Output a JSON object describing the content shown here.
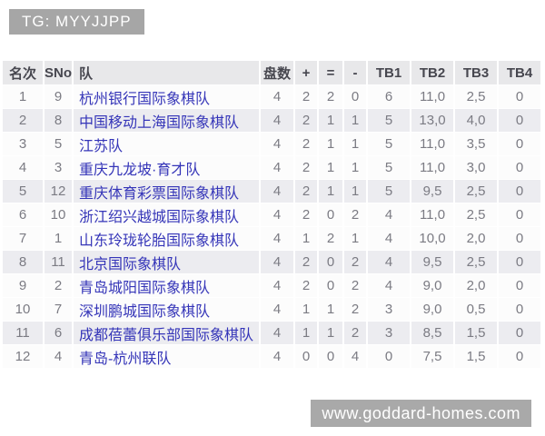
{
  "overlay_tag": {
    "text": "TG: MYYJJPP"
  },
  "watermark": {
    "text": "www.goddard-homes.com"
  },
  "standings": {
    "headers": {
      "rank": "名次",
      "sno": "SNo",
      "team": "队",
      "games": "盘数",
      "wins": "+",
      "draws": "=",
      "losses": "-",
      "tb1": "TB1",
      "tb2": "TB2",
      "tb3": "TB3",
      "tb4": "TB4"
    },
    "rows": [
      {
        "rank": "1",
        "sno": "9",
        "team": "杭州银行国际象棋队",
        "games": "4",
        "wins": "2",
        "draws": "2",
        "losses": "0",
        "tb1": "6",
        "tb2": "11,0",
        "tb3": "2,5",
        "tb4": "0"
      },
      {
        "rank": "2",
        "sno": "8",
        "team": "中国移动上海国际象棋队",
        "games": "4",
        "wins": "2",
        "draws": "1",
        "losses": "1",
        "tb1": "5",
        "tb2": "13,0",
        "tb3": "4,0",
        "tb4": "0"
      },
      {
        "rank": "3",
        "sno": "5",
        "team": "江苏队",
        "games": "4",
        "wins": "2",
        "draws": "1",
        "losses": "1",
        "tb1": "5",
        "tb2": "11,0",
        "tb3": "3,5",
        "tb4": "0"
      },
      {
        "rank": "4",
        "sno": "3",
        "team": "重庆九龙坡·育才队",
        "games": "4",
        "wins": "2",
        "draws": "1",
        "losses": "1",
        "tb1": "5",
        "tb2": "11,0",
        "tb3": "3,0",
        "tb4": "0"
      },
      {
        "rank": "5",
        "sno": "12",
        "team": "重庆体育彩票国际象棋队",
        "games": "4",
        "wins": "2",
        "draws": "1",
        "losses": "1",
        "tb1": "5",
        "tb2": "9,5",
        "tb3": "2,5",
        "tb4": "0"
      },
      {
        "rank": "6",
        "sno": "10",
        "team": "浙江绍兴越城国际象棋队",
        "games": "4",
        "wins": "2",
        "draws": "0",
        "losses": "2",
        "tb1": "4",
        "tb2": "11,0",
        "tb3": "2,5",
        "tb4": "0"
      },
      {
        "rank": "7",
        "sno": "1",
        "team": "山东玲珑轮胎国际象棋队",
        "games": "4",
        "wins": "1",
        "draws": "2",
        "losses": "1",
        "tb1": "4",
        "tb2": "10,0",
        "tb3": "2,0",
        "tb4": "0"
      },
      {
        "rank": "8",
        "sno": "11",
        "team": "北京国际象棋队",
        "games": "4",
        "wins": "2",
        "draws": "0",
        "losses": "2",
        "tb1": "4",
        "tb2": "9,5",
        "tb3": "2,5",
        "tb4": "0"
      },
      {
        "rank": "9",
        "sno": "2",
        "team": "青岛城阳国际象棋队",
        "games": "4",
        "wins": "2",
        "draws": "0",
        "losses": "2",
        "tb1": "4",
        "tb2": "9,0",
        "tb3": "2,0",
        "tb4": "0"
      },
      {
        "rank": "10",
        "sno": "7",
        "team": "深圳鹏城国际象棋队",
        "games": "4",
        "wins": "1",
        "draws": "1",
        "losses": "2",
        "tb1": "3",
        "tb2": "9,0",
        "tb3": "0,5",
        "tb4": "0"
      },
      {
        "rank": "11",
        "sno": "6",
        "team": "成都蓓蕾俱乐部国际象棋队",
        "games": "4",
        "wins": "1",
        "draws": "1",
        "losses": "2",
        "tb1": "3",
        "tb2": "8,5",
        "tb3": "1,5",
        "tb4": "0"
      },
      {
        "rank": "12",
        "sno": "4",
        "team": "青岛-杭州联队",
        "games": "4",
        "wins": "0",
        "draws": "0",
        "losses": "4",
        "tb1": "0",
        "tb2": "7,5",
        "tb3": "1,5",
        "tb4": "0"
      }
    ]
  },
  "colors": {
    "tag_bg": "#a6a6a6",
    "header_bg": "#e8e8ea",
    "header_text": "#47474f",
    "num_text": "#7b7b83",
    "team_link": "#3535b8",
    "stripe": "#ececf0"
  }
}
